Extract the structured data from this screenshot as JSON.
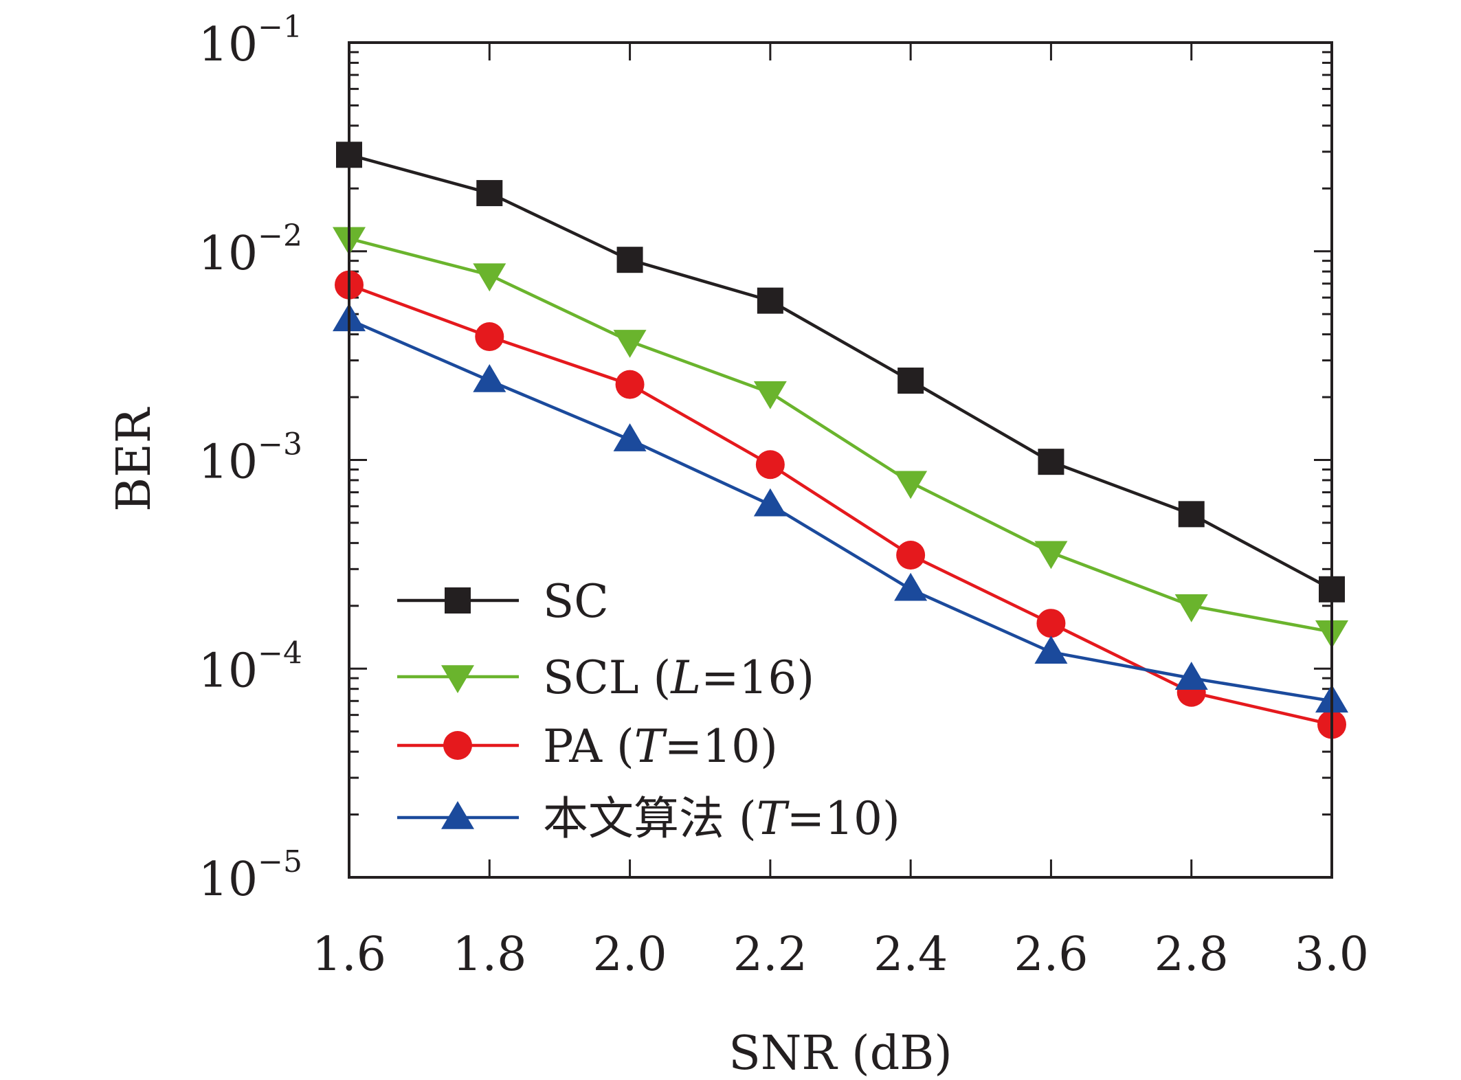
{
  "chart_data": {
    "type": "line",
    "xlabel": "SNR (dB)",
    "ylabel": "BER",
    "xlim": [
      1.6,
      3.0
    ],
    "ylim": [
      1e-05,
      0.1
    ],
    "y_scale": "log",
    "x_ticks": [
      "1.6",
      "1.8",
      "2.0",
      "2.2",
      "2.4",
      "2.6",
      "2.8",
      "3.0"
    ],
    "y_ticks": [
      {
        "value": 0.1,
        "base": "10",
        "exp": "−1"
      },
      {
        "value": 0.01,
        "base": "10",
        "exp": "−2"
      },
      {
        "value": 0.001,
        "base": "10",
        "exp": "−3"
      },
      {
        "value": 0.0001,
        "base": "10",
        "exp": "−4"
      },
      {
        "value": 1e-05,
        "base": "10",
        "exp": "−5"
      }
    ],
    "legend_position": "bottom-left",
    "grid": false,
    "x": [
      1.6,
      1.8,
      2.0,
      2.2,
      2.4,
      2.6,
      2.8,
      3.0
    ],
    "series": [
      {
        "name": "SC",
        "label_parts": [
          "SC"
        ],
        "color": "#231f20",
        "marker": "square",
        "values": [
          0.029,
          0.019,
          0.0091,
          0.0058,
          0.0024,
          0.00098,
          0.00055,
          0.00024
        ]
      },
      {
        "name": "SCL (L=16)",
        "label_parts": [
          "SCL (",
          "L",
          "=16)"
        ],
        "color": "#6ab42d",
        "marker": "triangle-down",
        "values": [
          0.0115,
          0.0077,
          0.0037,
          0.0021,
          0.00078,
          0.00036,
          0.0002,
          0.00015
        ]
      },
      {
        "name": "PA (T=10)",
        "label_parts": [
          "PA (",
          "T",
          "=10)"
        ],
        "color": "#e5191d",
        "marker": "circle",
        "values": [
          0.0069,
          0.0039,
          0.0023,
          0.00095,
          0.00035,
          0.000165,
          7.7e-05,
          5.4e-05
        ]
      },
      {
        "name": "本文算法 (T=10)",
        "label_parts": [
          "本文算法 (",
          "T",
          "=10)"
        ],
        "color": "#1b4a9c",
        "marker": "triangle-up",
        "values": [
          0.0047,
          0.0024,
          0.00125,
          0.00061,
          0.00024,
          0.00012,
          9e-05,
          7e-05
        ]
      }
    ]
  }
}
